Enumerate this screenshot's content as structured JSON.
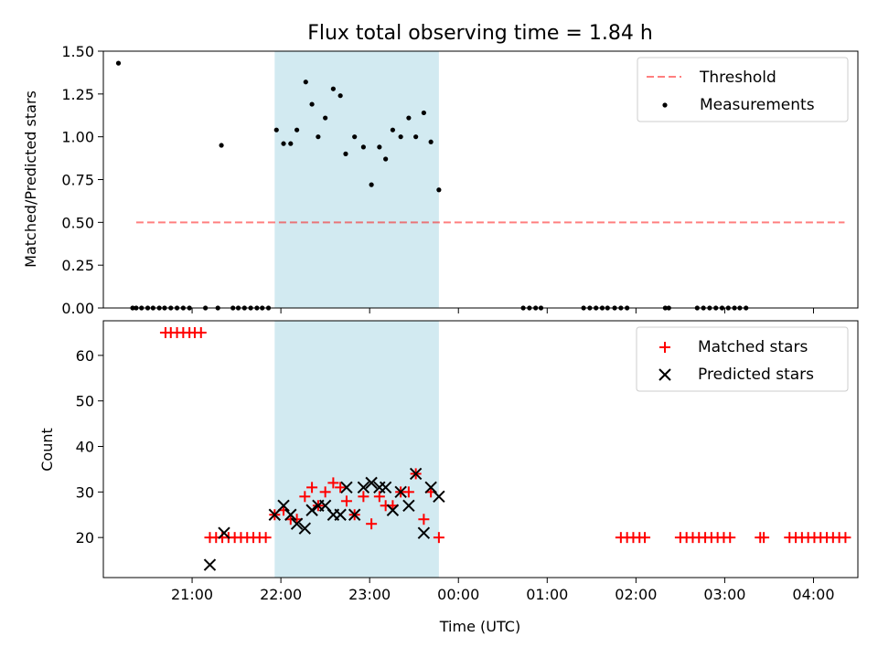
{
  "chart_data": {
    "title": "Flux total observing time = 1.84 h",
    "x_axis": {
      "label": "Time (UTC)",
      "range_hours": [
        20.0,
        28.5
      ],
      "ticks": [
        {
          "value": 21,
          "label": "21:00"
        },
        {
          "value": 22,
          "label": "22:00"
        },
        {
          "value": 23,
          "label": "23:00"
        },
        {
          "value": 24,
          "label": "00:00"
        },
        {
          "value": 25,
          "label": "01:00"
        },
        {
          "value": 26,
          "label": "02:00"
        },
        {
          "value": 27,
          "label": "03:00"
        },
        {
          "value": 28,
          "label": "04:00"
        }
      ]
    },
    "observing_window": {
      "start": 21.93,
      "end": 23.78,
      "color": "#add8e6"
    },
    "panels": [
      {
        "type": "scatter",
        "ylabel": "Matched/Predicted stars",
        "ylim": [
          0,
          1.5
        ],
        "yticks": [
          "0.00",
          "0.25",
          "0.50",
          "0.75",
          "1.00",
          "1.25",
          "1.50"
        ],
        "legend": [
          "Threshold",
          "Measurements"
        ],
        "threshold": {
          "name": "Threshold",
          "value": 0.5,
          "x_start": 20.37,
          "x_end": 28.35,
          "color": "#ff0000"
        },
        "series": [
          {
            "name": "Measurements",
            "color": "#000000",
            "x": [
              20.37,
              20.43,
              20.5,
              20.56,
              20.63,
              20.69,
              20.76,
              20.83,
              20.9,
              20.97,
              21.15,
              21.29,
              21.46,
              21.52,
              21.59,
              21.66,
              21.73,
              21.79,
              21.86,
              21.95,
              22.03,
              22.11,
              22.18,
              22.28,
              22.35,
              22.42,
              22.5,
              22.59,
              22.67,
              22.73,
              22.83,
              22.93,
              23.02,
              23.11,
              23.18,
              23.26,
              23.35,
              23.44,
              23.52,
              23.61,
              23.69,
              23.78,
              20.17,
              20.33,
              21.33,
              24.73,
              24.8,
              24.87,
              24.93,
              25.41,
              25.48,
              25.55,
              25.62,
              25.68,
              25.76,
              25.83,
              25.9,
              26.33,
              26.37,
              26.69,
              26.76,
              26.83,
              26.9,
              26.97,
              27.04,
              27.11,
              27.17,
              27.24
            ],
            "y": [
              0,
              0,
              0,
              0,
              0,
              0,
              0,
              0,
              0,
              0,
              0,
              0,
              0,
              0,
              0,
              0,
              0,
              0,
              0,
              1.04,
              0.96,
              0.96,
              1.04,
              1.32,
              1.19,
              1.0,
              1.11,
              1.28,
              1.24,
              0.9,
              1.0,
              0.94,
              0.72,
              0.94,
              0.87,
              1.04,
              1.0,
              1.11,
              1.0,
              1.14,
              0.97,
              0.69,
              1.43,
              0,
              0.95,
              0,
              0,
              0,
              0,
              0,
              0,
              0,
              0,
              0,
              0,
              0,
              0,
              0,
              0,
              0,
              0,
              0,
              0,
              0,
              0,
              0,
              0,
              0
            ]
          }
        ]
      },
      {
        "type": "scatter",
        "ylabel": "Count",
        "ylim": [
          11.2,
          67.6
        ],
        "yticks": [
          "20",
          "30",
          "40",
          "50",
          "60"
        ],
        "legend": [
          "Matched stars",
          "Predicted stars"
        ],
        "series": [
          {
            "name": "Matched stars",
            "color": "#ff0000",
            "marker": "plus",
            "x": [
              20.7,
              20.76,
              20.83,
              20.9,
              20.97,
              21.03,
              21.1,
              21.2,
              21.27,
              21.34,
              21.41,
              21.48,
              21.55,
              21.62,
              21.69,
              21.76,
              21.83,
              21.93,
              22.03,
              22.11,
              22.18,
              22.27,
              22.35,
              22.42,
              22.5,
              22.59,
              22.67,
              22.74,
              22.83,
              22.93,
              23.02,
              23.11,
              23.18,
              23.26,
              23.35,
              23.44,
              23.52,
              23.61,
              23.69,
              23.78,
              25.83,
              25.9,
              25.97,
              26.04,
              26.1,
              26.5,
              26.57,
              26.64,
              26.71,
              26.78,
              26.85,
              26.92,
              26.99,
              27.06,
              27.4,
              27.44,
              27.73,
              27.8,
              27.87,
              27.94,
              28.01,
              28.08,
              28.15,
              28.22,
              28.29,
              28.36
            ],
            "y": [
              65,
              65,
              65,
              65,
              65,
              65,
              65,
              20,
              20,
              20,
              20,
              20,
              20,
              20,
              20,
              20,
              20,
              25,
              26,
              24,
              24,
              29,
              31,
              27,
              30,
              32,
              31,
              28,
              25,
              29,
              23,
              29,
              27,
              27,
              30,
              30,
              34,
              24,
              30,
              20,
              20,
              20,
              20,
              20,
              20,
              20,
              20,
              20,
              20,
              20,
              20,
              20,
              20,
              20,
              20,
              20,
              20,
              20,
              20,
              20,
              20,
              20,
              20,
              20,
              20,
              20
            ]
          },
          {
            "name": "Predicted stars",
            "color": "#000000",
            "marker": "x",
            "x": [
              21.2,
              21.36,
              21.93,
              22.03,
              22.11,
              22.18,
              22.27,
              22.35,
              22.42,
              22.5,
              22.59,
              22.67,
              22.74,
              22.83,
              22.93,
              23.02,
              23.11,
              23.18,
              23.26,
              23.35,
              23.44,
              23.52,
              23.61,
              23.69,
              23.78
            ],
            "y": [
              14,
              21,
              25,
              27,
              25,
              23,
              22,
              26,
              27,
              27,
              25,
              25,
              31,
              25,
              31,
              32,
              31,
              31,
              26,
              30,
              27,
              34,
              21,
              31,
              29
            ]
          }
        ]
      }
    ]
  }
}
